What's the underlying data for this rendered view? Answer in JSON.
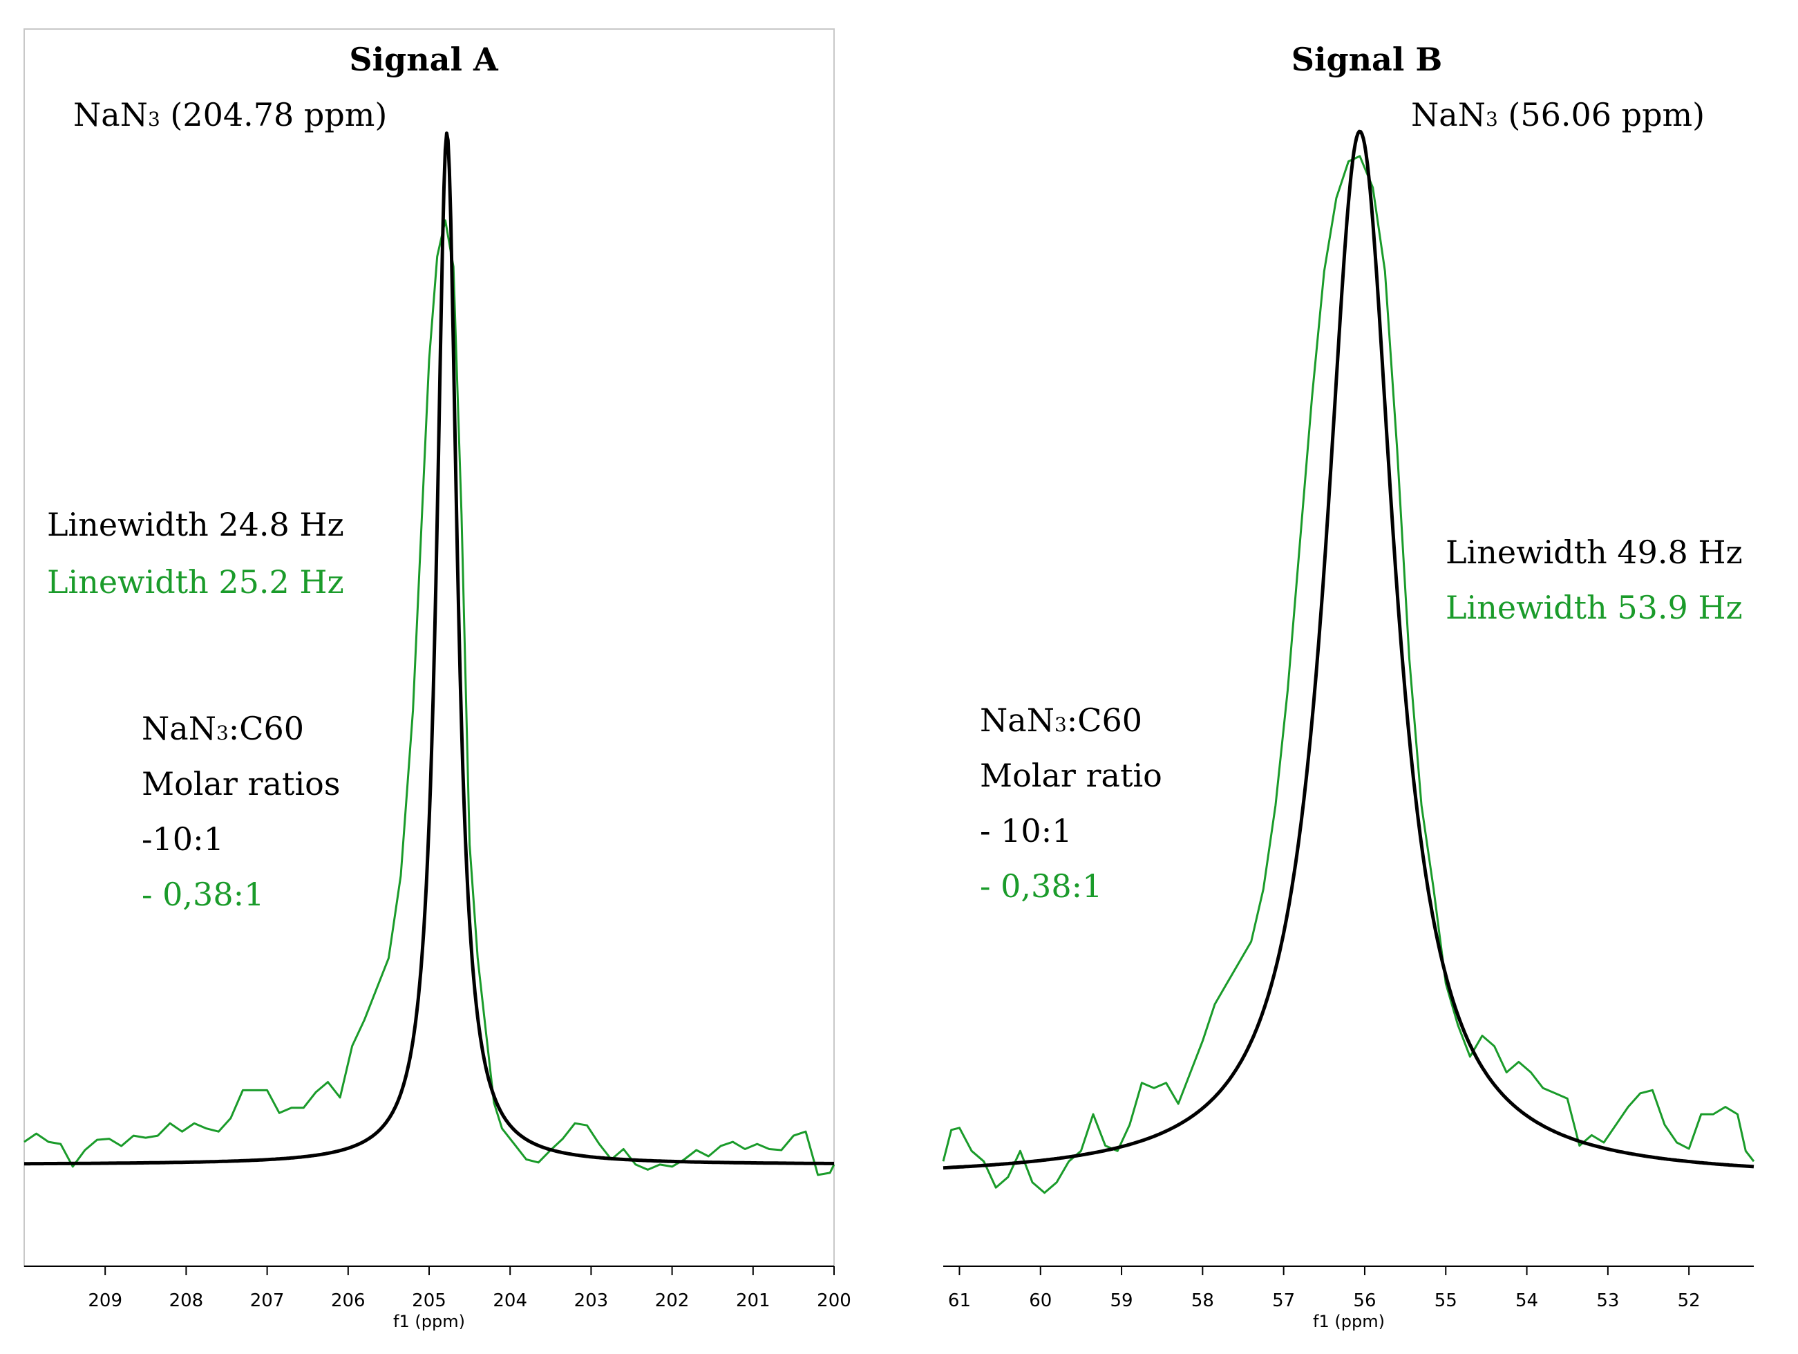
{
  "colors": {
    "black": "#000000",
    "green": "#1a9b2a",
    "frame": "#c8c8c8"
  },
  "chart_data": [
    {
      "type": "line",
      "title": "Signal A",
      "xlabel": "f1 (ppm)",
      "xlim": [
        210.0,
        200.0
      ],
      "ticks": [
        209,
        208,
        207,
        206,
        205,
        204,
        203,
        202,
        201,
        200
      ],
      "peak_label": "NaN3 (204.78 ppm)",
      "linewidth_labels": [
        "Linewidth 24.8 Hz",
        "Linewidth 25.2 Hz"
      ],
      "ratio_labels": [
        "NaN3:C60",
        "Molar ratios",
        "-10:1",
        "- 0,38:1"
      ],
      "series": [
        {
          "name": "10:1 (fit)",
          "color": "black",
          "center": 204.78,
          "hwhm": 0.155,
          "height": 1.0,
          "offset": 0.0
        },
        {
          "name": "0,38:1",
          "color": "green",
          "center": 204.78,
          "hwhm": 0.11,
          "height": 0.905,
          "offset": 0.0,
          "noise": [
            [
              210.0,
              0.012
            ],
            [
              209.85,
              0.02
            ],
            [
              209.7,
              0.012
            ],
            [
              209.55,
              0.01
            ],
            [
              209.4,
              -0.012
            ],
            [
              209.25,
              0.004
            ],
            [
              209.1,
              0.014
            ],
            [
              208.95,
              0.015
            ],
            [
              208.8,
              0.008
            ],
            [
              208.65,
              0.018
            ],
            [
              208.5,
              0.016
            ],
            [
              208.35,
              0.018
            ],
            [
              208.2,
              0.03
            ],
            [
              208.05,
              0.022
            ],
            [
              207.9,
              0.03
            ],
            [
              207.75,
              0.025
            ],
            [
              207.6,
              0.022
            ],
            [
              207.45,
              0.035
            ],
            [
              207.3,
              0.062
            ],
            [
              207.15,
              0.062
            ],
            [
              207.0,
              0.062
            ],
            [
              206.85,
              0.04
            ],
            [
              206.7,
              0.045
            ],
            [
              206.55,
              0.045
            ],
            [
              206.4,
              0.06
            ],
            [
              206.25,
              0.07
            ],
            [
              206.1,
              0.055
            ],
            [
              205.95,
              0.105
            ],
            [
              205.8,
              0.13
            ],
            [
              205.65,
              0.16
            ],
            [
              205.5,
              0.19
            ],
            [
              205.35,
              0.27
            ],
            [
              205.2,
              0.43
            ],
            [
              205.1,
              0.6
            ],
            [
              205.0,
              0.77
            ],
            [
              204.9,
              0.87
            ],
            [
              204.8,
              0.905
            ],
            [
              204.7,
              0.86
            ],
            [
              204.6,
              0.62
            ],
            [
              204.5,
              0.3
            ],
            [
              204.4,
              0.19
            ],
            [
              204.3,
              0.12
            ],
            [
              204.2,
              0.05
            ],
            [
              204.1,
              0.025
            ],
            [
              203.95,
              0.01
            ],
            [
              203.8,
              -0.005
            ],
            [
              203.65,
              -0.008
            ],
            [
              203.5,
              0.004
            ],
            [
              203.35,
              0.015
            ],
            [
              203.2,
              0.03
            ],
            [
              203.05,
              0.028
            ],
            [
              202.9,
              0.01
            ],
            [
              202.75,
              -0.005
            ],
            [
              202.6,
              0.005
            ],
            [
              202.45,
              -0.01
            ],
            [
              202.3,
              -0.015
            ],
            [
              202.15,
              -0.01
            ],
            [
              202.0,
              -0.012
            ],
            [
              201.85,
              -0.005
            ],
            [
              201.7,
              0.004
            ],
            [
              201.55,
              -0.002
            ],
            [
              201.4,
              0.008
            ],
            [
              201.25,
              0.012
            ],
            [
              201.1,
              0.005
            ],
            [
              200.95,
              0.01
            ],
            [
              200.8,
              0.005
            ],
            [
              200.65,
              0.004
            ],
            [
              200.5,
              0.018
            ],
            [
              200.35,
              0.022
            ],
            [
              200.2,
              -0.02
            ],
            [
              200.05,
              -0.018
            ],
            [
              200.0,
              -0.01
            ]
          ]
        }
      ]
    },
    {
      "type": "line",
      "title": "Signal B",
      "xlabel": "f1 (ppm)",
      "xlim": [
        61.2,
        51.2
      ],
      "ticks": [
        61,
        60,
        59,
        58,
        57,
        56,
        55,
        54,
        53,
        52
      ],
      "peak_label": "NaN3 (56.06 ppm)",
      "linewidth_labels": [
        "Linewidth 49.8 Hz",
        "Linewidth 53.9 Hz"
      ],
      "ratio_labels": [
        "NaN3:C60",
        "Molar ratio",
        "- 10:1",
        "- 0,38:1"
      ],
      "series": [
        {
          "name": "10:1 (fit)",
          "color": "black",
          "center": 56.06,
          "hwhm": 0.52,
          "height": 1.0,
          "offset": 0.0
        },
        {
          "name": "0,38:1",
          "color": "green",
          "center": 56.06,
          "hwhm": 0.5,
          "height": 0.94,
          "offset": 0.0,
          "noise": [
            [
              61.2,
              -0.02
            ],
            [
              61.1,
              0.01
            ],
            [
              61.0,
              0.012
            ],
            [
              60.85,
              -0.01
            ],
            [
              60.7,
              -0.02
            ],
            [
              60.55,
              -0.045
            ],
            [
              60.4,
              -0.035
            ],
            [
              60.25,
              -0.01
            ],
            [
              60.1,
              -0.04
            ],
            [
              59.95,
              -0.05
            ],
            [
              59.8,
              -0.04
            ],
            [
              59.65,
              -0.02
            ],
            [
              59.5,
              -0.01
            ],
            [
              59.35,
              0.025
            ],
            [
              59.2,
              -0.005
            ],
            [
              59.05,
              -0.01
            ],
            [
              58.9,
              0.015
            ],
            [
              58.75,
              0.055
            ],
            [
              58.6,
              0.05
            ],
            [
              58.45,
              0.055
            ],
            [
              58.3,
              0.035
            ],
            [
              58.15,
              0.065
            ],
            [
              58.0,
              0.095
            ],
            [
              57.85,
              0.13
            ],
            [
              57.7,
              0.15
            ],
            [
              57.55,
              0.17
            ],
            [
              57.4,
              0.19
            ],
            [
              57.25,
              0.24
            ],
            [
              57.1,
              0.32
            ],
            [
              56.95,
              0.43
            ],
            [
              56.8,
              0.57
            ],
            [
              56.65,
              0.71
            ],
            [
              56.5,
              0.83
            ],
            [
              56.35,
              0.9
            ],
            [
              56.2,
              0.935
            ],
            [
              56.06,
              0.94
            ],
            [
              55.9,
              0.91
            ],
            [
              55.75,
              0.83
            ],
            [
              55.6,
              0.66
            ],
            [
              55.45,
              0.46
            ],
            [
              55.3,
              0.32
            ],
            [
              55.15,
              0.24
            ],
            [
              55.0,
              0.15
            ],
            [
              54.85,
              0.11
            ],
            [
              54.7,
              0.08
            ],
            [
              54.55,
              0.1
            ],
            [
              54.4,
              0.09
            ],
            [
              54.25,
              0.065
            ],
            [
              54.1,
              0.075
            ],
            [
              53.95,
              0.065
            ],
            [
              53.8,
              0.05
            ],
            [
              53.65,
              0.045
            ],
            [
              53.5,
              0.04
            ],
            [
              53.35,
              -0.005
            ],
            [
              53.2,
              0.005
            ],
            [
              53.05,
              -0.002
            ],
            [
              52.9,
              0.015
            ],
            [
              52.75,
              0.032
            ],
            [
              52.6,
              0.045
            ],
            [
              52.45,
              0.048
            ],
            [
              52.3,
              0.015
            ],
            [
              52.15,
              -0.002
            ],
            [
              52.0,
              -0.008
            ],
            [
              51.85,
              0.025
            ],
            [
              51.7,
              0.025
            ],
            [
              51.55,
              0.032
            ],
            [
              51.4,
              0.025
            ],
            [
              51.3,
              -0.01
            ],
            [
              51.2,
              -0.02
            ]
          ]
        }
      ]
    }
  ]
}
